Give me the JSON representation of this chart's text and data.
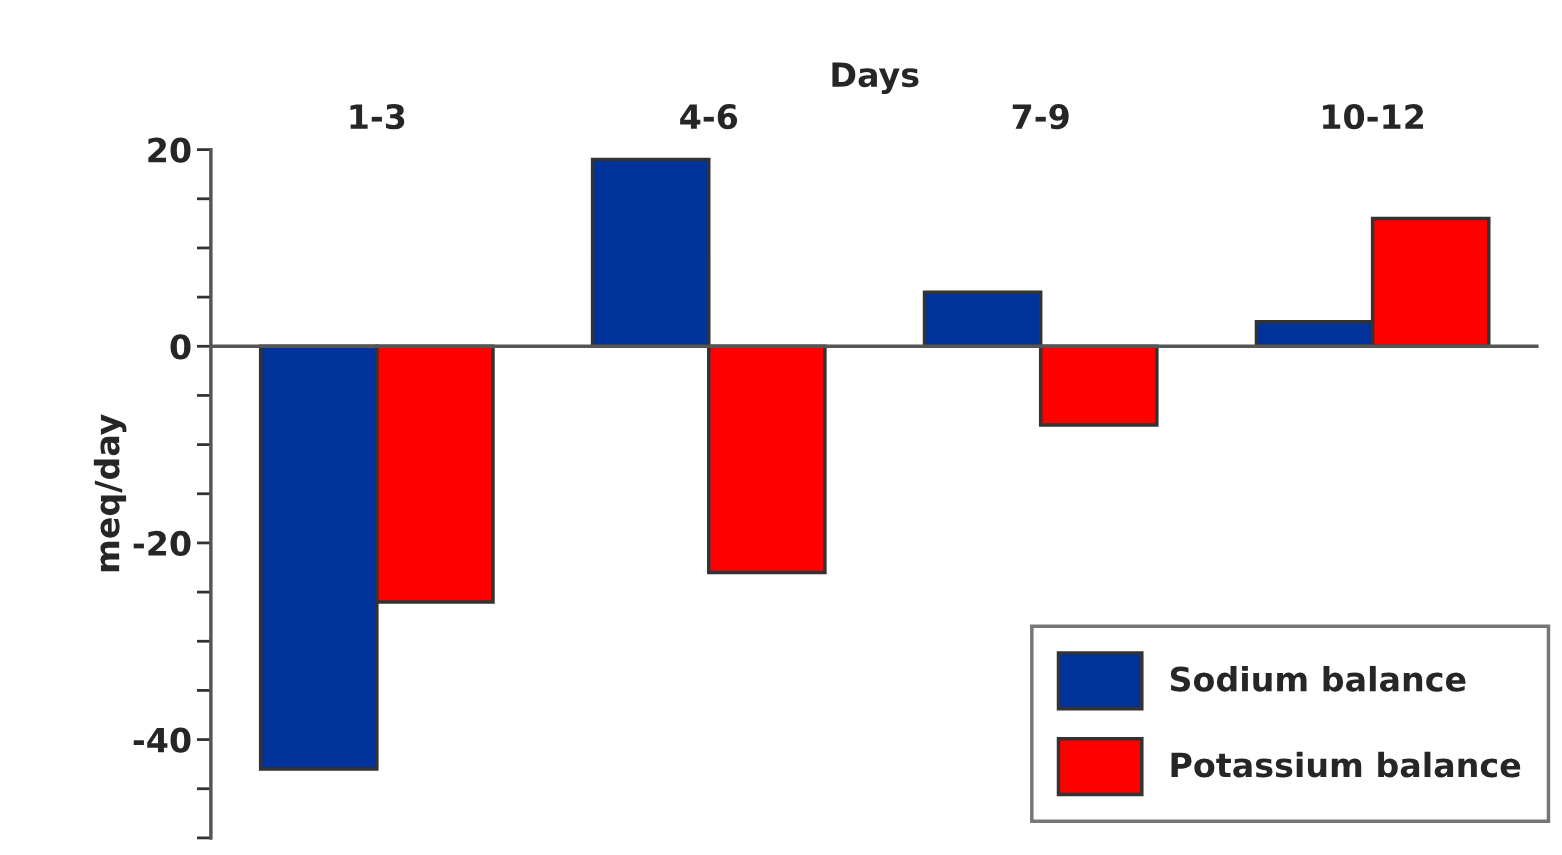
{
  "chart_data": {
    "type": "bar",
    "xlabel": "Days",
    "ylabel": "meq/day",
    "categories": [
      "1-3",
      "4-6",
      "7-9",
      "10-12"
    ],
    "series": [
      {
        "name": "Sodium balance",
        "color": "#003399",
        "values": [
          -43,
          19,
          5.5,
          2.5
        ]
      },
      {
        "name": "Potassium balance",
        "color": "#ff0000",
        "values": [
          -26,
          -23,
          -8,
          13
        ]
      }
    ],
    "ylim": [
      -50,
      20
    ],
    "yticks": [
      {
        "value": -50,
        "label": null
      },
      {
        "value": -45,
        "label": null
      },
      -40,
      {
        "value": -35,
        "label": null
      },
      {
        "value": -30,
        "label": null
      },
      {
        "value": -25,
        "label": null
      },
      -20,
      {
        "value": -15,
        "label": null
      },
      {
        "value": -10,
        "label": null
      },
      {
        "value": -5,
        "label": null
      },
      0,
      {
        "value": 5,
        "label": null
      },
      {
        "value": 10,
        "label": null
      },
      {
        "value": 15,
        "label": null
      },
      20
    ],
    "ref_lines": [
      {
        "axis": "y",
        "value": 0,
        "color": "#555555"
      }
    ],
    "grid": false,
    "legend": "bottom right"
  }
}
